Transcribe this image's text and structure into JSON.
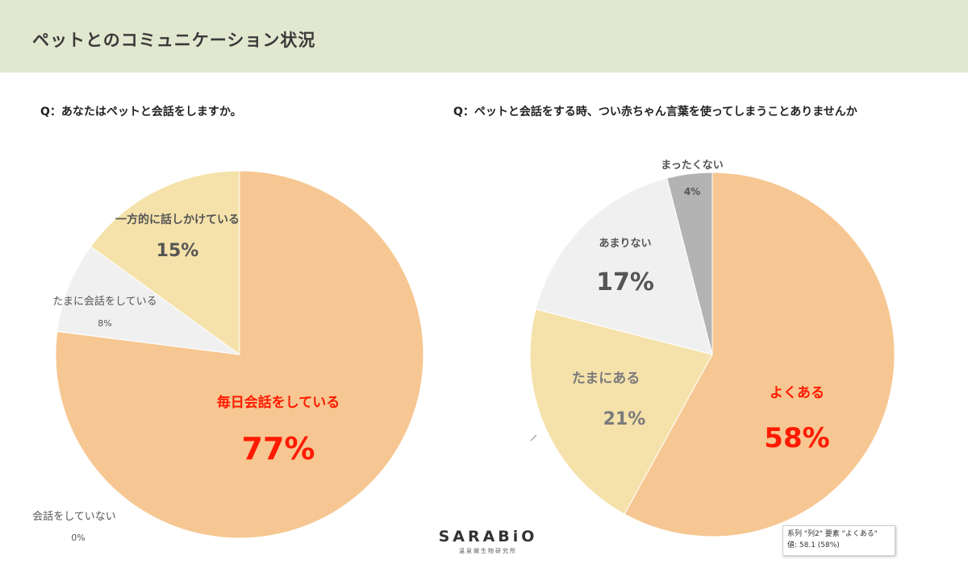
{
  "header": {
    "title": "ペットとのコミュニケーション状況"
  },
  "colors": {
    "header_bg": "#e2e8cf",
    "peach": "#f6c792",
    "cream": "#f5e2aa",
    "light_gray": "#f0f0f0",
    "gray": "#b3b3b3",
    "highlight_text": "#ff1a00",
    "label_text": "#555555"
  },
  "chart_data": [
    {
      "type": "pie",
      "title": "Q：あなたはペットと会話をしますか。",
      "slices": [
        {
          "label": "毎日会話をしている",
          "value": 77,
          "value_label": "77%"
        },
        {
          "label": "会話をしていない",
          "value": 0,
          "value_label": "0%"
        },
        {
          "label": "たまに会話をしている",
          "value": 8,
          "value_label": "8%"
        },
        {
          "label": "一方的に話しかけている",
          "value": 15,
          "value_label": "15%"
        }
      ]
    },
    {
      "type": "pie",
      "title": "Q：ペットと会話をする時、つい赤ちゃん言葉を使ってしまうことありませんか",
      "slices": [
        {
          "label": "よくある",
          "value": 58,
          "value_label": "58%"
        },
        {
          "label": "たまにある",
          "value": 21,
          "value_label": "21%"
        },
        {
          "label": "あまりない",
          "value": 17,
          "value_label": "17%"
        },
        {
          "label": "まったくない",
          "value": 4,
          "value_label": "4%"
        }
      ]
    }
  ],
  "logo": {
    "name": "SARABiO",
    "subtitle": "温泉微生物研究所"
  },
  "tooltip": {
    "line1": "系列 \"列2\" 要素 \"よくある\"",
    "line2": "値: 58.1 (58%)"
  }
}
